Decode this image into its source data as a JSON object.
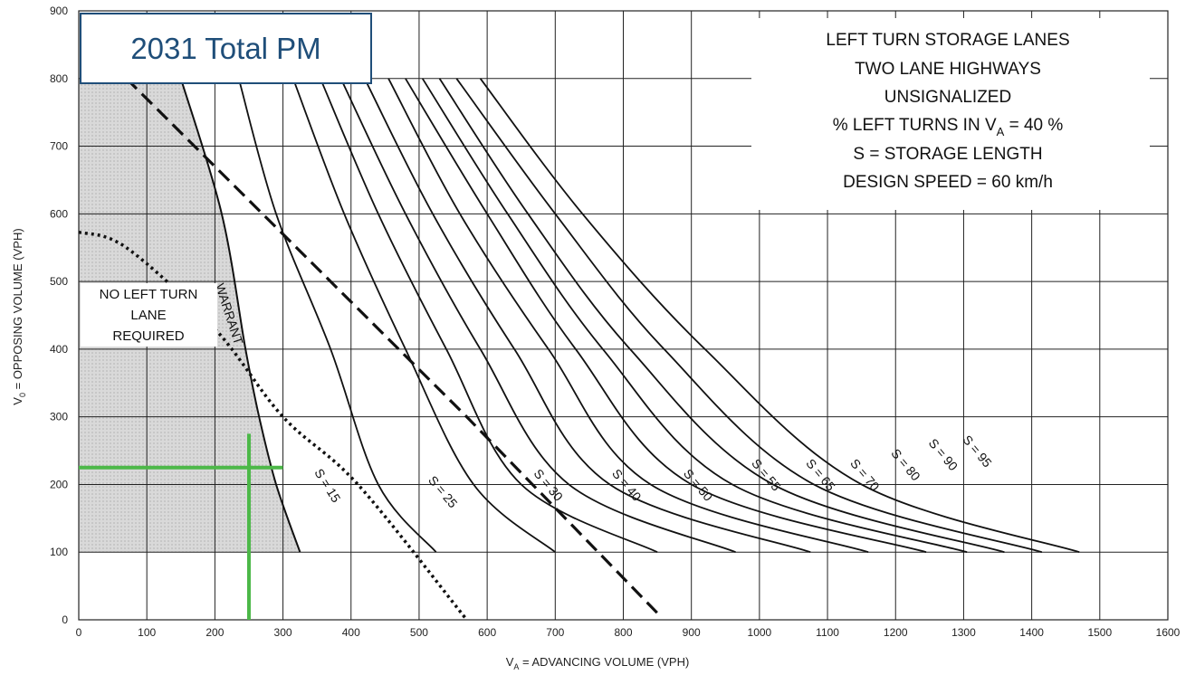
{
  "badge": {
    "label": "2031 Total PM"
  },
  "info_box": {
    "lines": [
      "LEFT TURN STORAGE LANES",
      "TWO LANE HIGHWAYS",
      "UNSIGNALIZED",
      "% LEFT TURNS IN V",
      "S = STORAGE LENGTH",
      "DESIGN SPEED = 60 km/h"
    ],
    "line4_sub": "A",
    "line4_tail": " = 40 %"
  },
  "no_lane_label": [
    "NO LEFT TURN",
    "LANE",
    "REQUIRED"
  ],
  "colors": {
    "highlight": "#4cb848",
    "shade": "#d9d9d9",
    "grid": "#222222",
    "badge_border": "#1f4e79"
  },
  "chart_data": {
    "type": "line",
    "xlabel_main": "V",
    "xlabel_sub": "A",
    "xlabel_tail": " = ADVANCING VOLUME (VPH)",
    "ylabel_main": "V",
    "ylabel_sub": "0",
    "ylabel_tail": " = OPPOSING VOLUME (VPH)",
    "xlim": [
      0,
      1600
    ],
    "ylim": [
      0,
      900
    ],
    "xticks": [
      "0",
      "100",
      "200",
      "300",
      "400",
      "500",
      "600",
      "700",
      "800",
      "900",
      "1000",
      "1100",
      "1200",
      "1300",
      "1400",
      "1500",
      "1600"
    ],
    "yticks": [
      "0",
      "100",
      "200",
      "300",
      "400",
      "500",
      "600",
      "700",
      "800",
      "900"
    ],
    "grid": true,
    "warrant": {
      "label": "WARRANT",
      "points": [
        [
          150,
          800
        ],
        [
          210,
          600
        ],
        [
          245,
          400
        ],
        [
          265,
          300
        ],
        [
          290,
          200
        ],
        [
          325,
          100
        ]
      ]
    },
    "dashed_line": {
      "points": [
        [
          70,
          800
        ],
        [
          570,
          300
        ],
        [
          850,
          10
        ]
      ]
    },
    "dotted_s15": {
      "label": "S = 15",
      "points": [
        [
          0,
          573
        ],
        [
          70,
          550
        ],
        [
          200,
          430
        ],
        [
          300,
          300
        ],
        [
          410,
          200
        ],
        [
          570,
          0
        ]
      ]
    },
    "storage_curves": [
      {
        "label": "S = 25",
        "points": [
          [
            235,
            800
          ],
          [
            290,
            600
          ],
          [
            370,
            400
          ],
          [
            440,
            200
          ],
          [
            525,
            100
          ]
        ]
      },
      {
        "label": "S = 30",
        "points": [
          [
            315,
            800
          ],
          [
            390,
            600
          ],
          [
            480,
            400
          ],
          [
            580,
            200
          ],
          [
            700,
            100
          ]
        ]
      },
      {
        "label": "S = 40",
        "points": [
          [
            355,
            800
          ],
          [
            440,
            600
          ],
          [
            540,
            400
          ],
          [
            650,
            200
          ],
          [
            850,
            100
          ]
        ]
      },
      {
        "label": "S = 50",
        "points": [
          [
            385,
            800
          ],
          [
            480,
            600
          ],
          [
            590,
            400
          ],
          [
            720,
            200
          ],
          [
            965,
            100
          ]
        ]
      },
      {
        "label": "S = 55",
        "points": [
          [
            420,
            800
          ],
          [
            520,
            600
          ],
          [
            640,
            400
          ],
          [
            780,
            200
          ],
          [
            1075,
            100
          ]
        ]
      },
      {
        "label": "S = 65",
        "points": [
          [
            455,
            800
          ],
          [
            560,
            600
          ],
          [
            690,
            400
          ],
          [
            840,
            200
          ],
          [
            1160,
            100
          ]
        ]
      },
      {
        "label": "S = 70",
        "points": [
          [
            480,
            800
          ],
          [
            600,
            600
          ],
          [
            730,
            400
          ],
          [
            900,
            200
          ],
          [
            1245,
            100
          ]
        ]
      },
      {
        "label": "S = 80",
        "points": [
          [
            505,
            800
          ],
          [
            630,
            600
          ],
          [
            770,
            400
          ],
          [
            960,
            200
          ],
          [
            1305,
            100
          ]
        ]
      },
      {
        "label": "S = 90",
        "points": [
          [
            530,
            800
          ],
          [
            660,
            600
          ],
          [
            810,
            400
          ],
          [
            1020,
            200
          ],
          [
            1360,
            100
          ]
        ]
      },
      {
        "label": "S = 95",
        "points": [
          [
            555,
            800
          ],
          [
            700,
            600
          ],
          [
            860,
            400
          ],
          [
            1080,
            200
          ],
          [
            1415,
            100
          ]
        ]
      },
      {
        "label": "",
        "points": [
          [
            590,
            800
          ],
          [
            740,
            600
          ],
          [
            920,
            400
          ],
          [
            1150,
            200
          ],
          [
            1470,
            100
          ]
        ]
      }
    ],
    "label_positions": [
      {
        "label": "S = 25",
        "x": 530,
        "y": 185
      },
      {
        "label": "S = 30",
        "x": 685,
        "y": 195
      },
      {
        "label": "S = 40",
        "x": 800,
        "y": 195
      },
      {
        "label": "S = 50",
        "x": 905,
        "y": 195
      },
      {
        "label": "S = 55",
        "x": 1005,
        "y": 210
      },
      {
        "label": "S = 65",
        "x": 1085,
        "y": 210
      },
      {
        "label": "S = 70",
        "x": 1150,
        "y": 210
      },
      {
        "label": "S = 80",
        "x": 1210,
        "y": 225
      },
      {
        "label": "S = 90",
        "x": 1265,
        "y": 240
      },
      {
        "label": "S = 95",
        "x": 1315,
        "y": 245
      }
    ],
    "highlight_point": {
      "x": 250,
      "y": 225,
      "x_line_to": 300,
      "y_line_top": 275
    }
  }
}
